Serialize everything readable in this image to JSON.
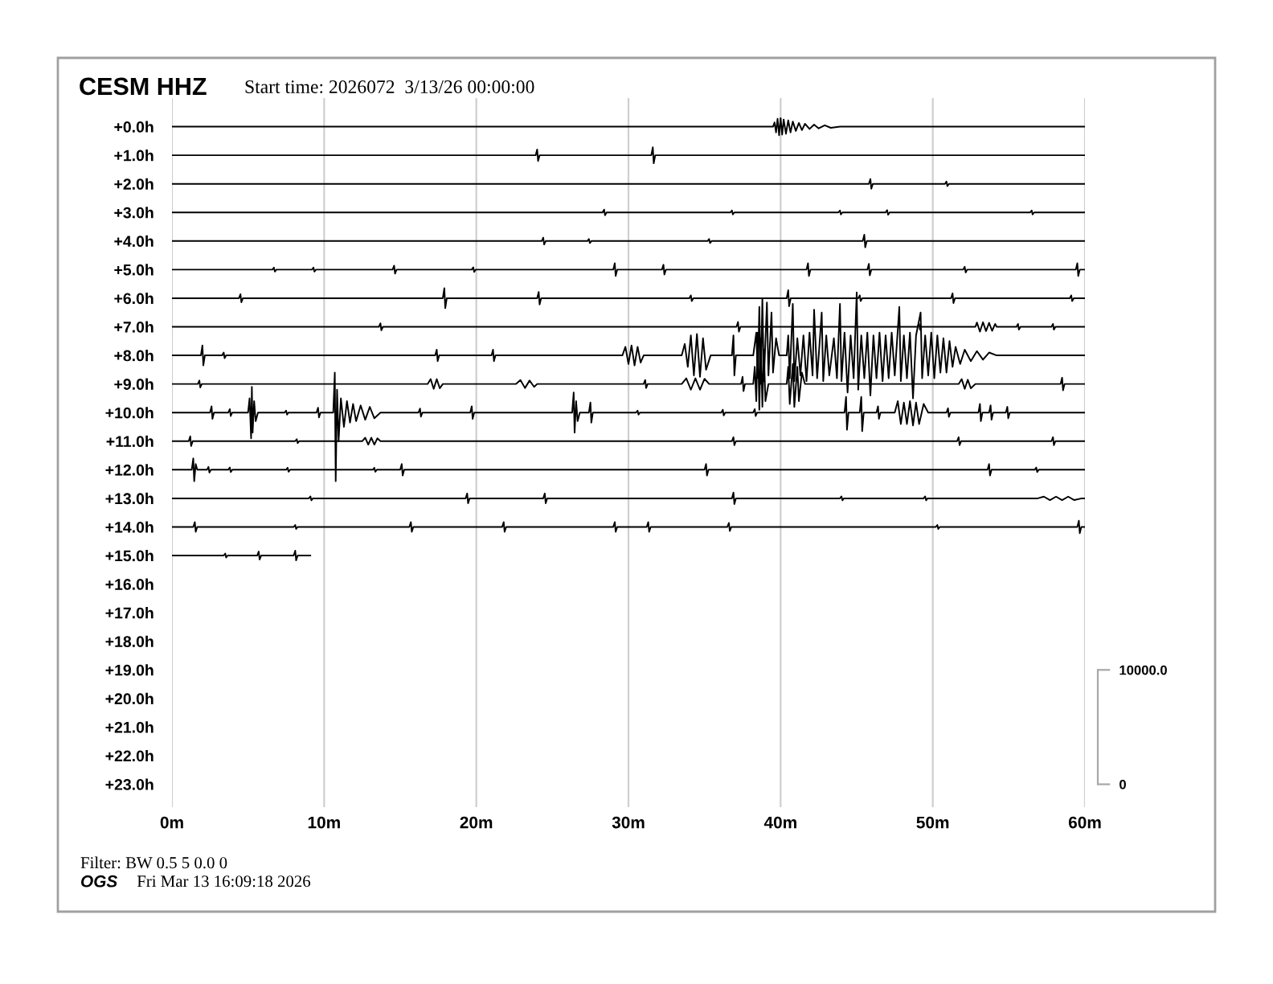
{
  "chart_data": {
    "type": "line",
    "title": "CESM HHZ",
    "subtitle": "Start time: 2026072  3/13/26 00:00:00",
    "annotations": [
      "Filter: BW 0.5 5 0.0 0",
      "OGS",
      "Fri Mar 13 16:09:18 2026"
    ],
    "xlim": [
      0,
      60
    ],
    "xticks": [
      {
        "value": 0,
        "label": "0m"
      },
      {
        "value": 10,
        "label": "10m"
      },
      {
        "value": 20,
        "label": "20m"
      },
      {
        "value": 30,
        "label": "30m"
      },
      {
        "value": 40,
        "label": "40m"
      },
      {
        "value": 50,
        "label": "50m"
      },
      {
        "value": 60,
        "label": "60m"
      }
    ],
    "ylim": [
      23.8,
      -1.0
    ],
    "yticks": [
      {
        "value": 0,
        "label": "+0.0h"
      },
      {
        "value": 1,
        "label": "+1.0h"
      },
      {
        "value": 2,
        "label": "+2.0h"
      },
      {
        "value": 3,
        "label": "+3.0h"
      },
      {
        "value": 4,
        "label": "+4.0h"
      },
      {
        "value": 5,
        "label": "+5.0h"
      },
      {
        "value": 6,
        "label": "+6.0h"
      },
      {
        "value": 7,
        "label": "+7.0h"
      },
      {
        "value": 8,
        "label": "+8.0h"
      },
      {
        "value": 9,
        "label": "+9.0h"
      },
      {
        "value": 10,
        "label": "+10.0h"
      },
      {
        "value": 11,
        "label": "+11.0h"
      },
      {
        "value": 12,
        "label": "+12.0h"
      },
      {
        "value": 13,
        "label": "+13.0h"
      },
      {
        "value": 14,
        "label": "+14.0h"
      },
      {
        "value": 15,
        "label": "+15.0h"
      },
      {
        "value": 16,
        "label": "+16.0h"
      },
      {
        "value": 17,
        "label": "+17.0h"
      },
      {
        "value": 18,
        "label": "+18.0h"
      },
      {
        "value": 19,
        "label": "+19.0h"
      },
      {
        "value": 20,
        "label": "+20.0h"
      },
      {
        "value": 21,
        "label": "+21.0h"
      },
      {
        "value": 22,
        "label": "+22.0h"
      },
      {
        "value": 23,
        "label": "+23.0h"
      }
    ],
    "y2lim": [
      -2000,
      60000
    ],
    "y2ticks": [
      0,
      {
        "value": 10000,
        "label": "10000.0"
      }
    ],
    "grid": "x",
    "series": [
      {
        "color": "#000000",
        "x": [
          0,
          39.5,
          39.6,
          39.7,
          39.8,
          39.9,
          40.0,
          40.1,
          40.2,
          40.35,
          40.5,
          40.65,
          40.8,
          41.0,
          41.2,
          41.4,
          41.6,
          41.9,
          42.2,
          42.5,
          42.9,
          43.3,
          43.9,
          60
        ],
        "values": [
          0,
          0,
          -0.15,
          0.2,
          -0.28,
          0.3,
          -0.3,
          0.28,
          -0.25,
          0.25,
          -0.22,
          0.2,
          -0.18,
          0.15,
          -0.13,
          0.12,
          -0.1,
          0.08,
          -0.07,
          0.06,
          -0.05,
          0.04,
          0,
          0
        ]
      },
      {
        "color": "#000000",
        "x": [
          0,
          23.9,
          24.0,
          24.06,
          24.16,
          31.5,
          31.6,
          31.66,
          31.76,
          60
        ],
        "values": [
          1,
          1,
          0.8,
          1.2,
          1,
          1,
          0.72,
          1.28,
          1,
          1
        ]
      },
      {
        "color": "#000000",
        "x": [
          0,
          45.8,
          45.9,
          45.96,
          46.06,
          50.8,
          50.9,
          50.96,
          51.06,
          60
        ],
        "values": [
          2,
          2,
          1.83,
          2.17,
          2,
          2,
          1.92,
          2.08,
          2,
          2
        ]
      },
      {
        "color": "#000000",
        "x": [
          0,
          28.3,
          28.4,
          28.46,
          28.56,
          36.7,
          36.8,
          36.86,
          36.96,
          43.8,
          43.9,
          43.96,
          44.06,
          46.9,
          47.0,
          47.06,
          47.16,
          56.4,
          56.5,
          56.56,
          56.66,
          60
        ],
        "values": [
          3,
          3,
          2.9,
          3.1,
          3,
          3,
          2.93,
          3.07,
          3,
          3,
          2.93,
          3.07,
          3,
          3,
          2.92,
          3.08,
          3,
          3,
          2.93,
          3.07,
          3,
          3
        ]
      },
      {
        "color": "#000000",
        "x": [
          0,
          24.3,
          24.4,
          24.46,
          24.56,
          27.3,
          27.4,
          27.46,
          27.56,
          35.2,
          35.3,
          35.36,
          35.46,
          45.4,
          45.5,
          45.56,
          45.66,
          60
        ],
        "values": [
          4,
          4,
          3.88,
          4.12,
          4,
          4,
          3.93,
          4.07,
          4,
          4,
          3.93,
          4.07,
          4,
          4,
          3.78,
          4.22,
          4,
          4
        ]
      },
      {
        "color": "#000000",
        "x": [
          0,
          6.6,
          6.7,
          6.76,
          6.86,
          9.2,
          9.3,
          9.36,
          9.46,
          14.5,
          14.6,
          14.66,
          14.76,
          19.7,
          19.8,
          19.86,
          19.96,
          29.0,
          29.1,
          29.16,
          29.26,
          32.2,
          32.3,
          32.36,
          32.46,
          41.7,
          41.8,
          41.86,
          41.96,
          45.7,
          45.8,
          45.86,
          45.96,
          52.0,
          52.1,
          52.16,
          52.26,
          59.4,
          59.5,
          59.56,
          59.66,
          60
        ],
        "values": [
          5,
          5,
          4.93,
          5.07,
          5,
          5,
          4.93,
          5.07,
          5,
          5,
          4.86,
          5.14,
          5,
          5,
          4.92,
          5.08,
          5,
          5,
          4.78,
          5.22,
          5,
          5,
          4.83,
          5.17,
          5,
          5,
          4.78,
          5.22,
          5,
          5,
          4.8,
          5.2,
          5,
          5,
          4.9,
          5.1,
          5,
          5,
          4.78,
          5.22,
          5,
          5
        ]
      },
      {
        "color": "#000000",
        "x": [
          0,
          4.4,
          4.5,
          4.56,
          4.66,
          17.8,
          17.9,
          17.96,
          18.06,
          24.0,
          24.1,
          24.16,
          24.26,
          34.0,
          34.1,
          34.16,
          34.26,
          40.4,
          40.5,
          40.56,
          40.66,
          45.1,
          45.2,
          45.26,
          45.36,
          51.2,
          51.3,
          51.36,
          51.46,
          59.0,
          59.1,
          59.16,
          59.26,
          60
        ],
        "values": [
          6,
          6,
          5.86,
          6.14,
          6,
          6,
          5.65,
          6.35,
          6,
          6,
          5.78,
          6.22,
          6,
          6,
          5.9,
          6.1,
          6,
          6,
          5.72,
          6.28,
          6,
          6,
          5.9,
          6.1,
          6,
          6,
          5.83,
          6.17,
          6,
          6,
          5.9,
          6.1,
          6,
          6
        ]
      },
      {
        "color": "#000000",
        "x": [
          0,
          13.6,
          13.7,
          13.76,
          13.86,
          37.1,
          37.2,
          37.26,
          37.36,
          49.0,
          49.1,
          49.16,
          49.26,
          52.8,
          52.9,
          53.1,
          53.3,
          53.5,
          53.7,
          53.9,
          54.1,
          54.2,
          55.5,
          55.6,
          55.66,
          55.76,
          57.8,
          57.9,
          57.96,
          58.06,
          60
        ],
        "values": [
          7,
          7,
          6.88,
          7.12,
          7,
          7,
          6.83,
          7.17,
          7,
          7,
          6.9,
          7.1,
          7,
          7,
          6.85,
          7.17,
          6.84,
          7.15,
          6.86,
          7.14,
          6.9,
          7,
          7,
          6.9,
          7.1,
          7,
          7,
          6.9,
          7.1,
          7,
          7
        ]
      },
      {
        "color": "#000000",
        "x": [
          0,
          1.9,
          2.0,
          2.06,
          2.16,
          3.3,
          3.4,
          3.46,
          3.56,
          17.3,
          17.4,
          17.46,
          17.56,
          21.0,
          21.1,
          21.16,
          21.26,
          29.6,
          29.8,
          30.0,
          30.2,
          30.4,
          30.6,
          30.8,
          31.0,
          33.5,
          33.7,
          33.9,
          34.1,
          34.3,
          34.5,
          34.7,
          34.9,
          35.1,
          35.4,
          36.8,
          36.9,
          36.96,
          37.06,
          38.2,
          38.4,
          38.5,
          38.6,
          38.7,
          38.8,
          38.9,
          39.1,
          39.2,
          39.4,
          39.5,
          39.7,
          39.9,
          40.4,
          40.5,
          40.6,
          40.8,
          40.9,
          41.1,
          41.3,
          41.5,
          41.7,
          41.9,
          42.1,
          42.2,
          42.4,
          42.7,
          42.8,
          43.0,
          43.2,
          43.5,
          43.7,
          43.9,
          44.0,
          44.2,
          44.4,
          44.6,
          44.8,
          45.0,
          45.1,
          45.3,
          45.5,
          45.7,
          45.9,
          46.1,
          46.3,
          46.5,
          46.7,
          46.9,
          47.1,
          47.3,
          47.5,
          47.8,
          47.9,
          48.1,
          48.3,
          48.5,
          48.7,
          48.9,
          49.2,
          49.3,
          49.5,
          49.7,
          49.9,
          50.1,
          50.3,
          50.5,
          50.7,
          50.9,
          51.1,
          51.3,
          51.5,
          51.8,
          52.1,
          52.5,
          52.9,
          53.3,
          53.7,
          54.2,
          60
        ],
        "values": [
          8,
          8,
          7.65,
          8.35,
          8,
          8,
          7.9,
          8.1,
          8,
          8,
          7.8,
          8.2,
          8,
          8,
          7.8,
          8.2,
          8,
          8,
          7.7,
          8.3,
          7.65,
          8.35,
          7.7,
          8.25,
          8,
          8,
          7.6,
          8.4,
          7.3,
          8.7,
          7.25,
          8.75,
          7.4,
          8.5,
          8,
          8,
          7.3,
          8.7,
          8,
          8,
          7.2,
          8.8,
          6.3,
          9.0,
          6.0,
          8.9,
          6.15,
          8.7,
          6.5,
          8.6,
          7.4,
          8,
          8,
          7.3,
          8.8,
          6.2,
          8.9,
          7.4,
          8.7,
          7.3,
          8.9,
          7.2,
          8.7,
          6.4,
          8.8,
          6.5,
          8.9,
          7.3,
          8.7,
          7.4,
          8.8,
          6.2,
          8.9,
          7.2,
          9.3,
          7.3,
          8.8,
          5.8,
          9.2,
          7.3,
          8.8,
          7.2,
          9.4,
          7.3,
          8.8,
          7.2,
          8.9,
          7.3,
          8.8,
          7.2,
          8.7,
          6.3,
          8.9,
          7.3,
          8.8,
          7.2,
          9.5,
          7.3,
          6.5,
          8.8,
          7.3,
          8.7,
          7.2,
          8.8,
          7.3,
          8.6,
          7.4,
          8.6,
          7.5,
          8.4,
          7.7,
          8.3,
          7.8,
          8.2,
          7.85,
          8.15,
          7.9,
          8,
          8
        ]
      },
      {
        "color": "#000000",
        "x": [
          0,
          1.7,
          1.8,
          1.86,
          1.96,
          16.8,
          17.0,
          17.2,
          17.4,
          17.6,
          17.8,
          22.6,
          22.9,
          23.2,
          23.5,
          23.8,
          24.0,
          31.0,
          31.1,
          31.16,
          31.26,
          33.5,
          33.8,
          34.1,
          34.4,
          34.7,
          35.0,
          35.3,
          37.4,
          37.5,
          37.56,
          37.66,
          38.2,
          38.3,
          38.4,
          38.5,
          38.6,
          38.7,
          38.8,
          38.9,
          39.0,
          39.2,
          40.4,
          40.5,
          40.6,
          40.8,
          40.9,
          41.1,
          41.2,
          41.4,
          41.6,
          51.7,
          51.9,
          52.1,
          52.3,
          52.5,
          52.8,
          58.4,
          58.5,
          58.56,
          58.66,
          60
        ],
        "values": [
          9,
          9,
          8.88,
          9.12,
          9,
          9,
          8.83,
          9.17,
          8.83,
          9.15,
          9,
          9,
          8.86,
          9.14,
          8.88,
          9.1,
          9,
          9,
          8.86,
          9.14,
          9,
          9,
          8.8,
          9.2,
          8.8,
          9.2,
          8.82,
          9,
          9,
          8.75,
          9.25,
          9,
          9,
          8.4,
          9.6,
          7.2,
          9.9,
          7.4,
          9.8,
          7.8,
          9.6,
          9,
          9,
          8.4,
          9.7,
          8.3,
          9.8,
          8.4,
          9.6,
          8.6,
          9,
          9,
          8.83,
          9.17,
          8.85,
          9.15,
          9,
          9,
          8.78,
          9.22,
          9,
          9
        ]
      },
      {
        "color": "#000000",
        "x": [
          0,
          2.5,
          2.6,
          2.66,
          2.76,
          3.7,
          3.8,
          3.86,
          3.96,
          5.0,
          5.1,
          5.2,
          5.25,
          5.3,
          5.4,
          5.5,
          5.65,
          7.4,
          7.5,
          7.56,
          7.66,
          9.5,
          9.6,
          9.66,
          9.76,
          10.6,
          10.7,
          10.76,
          10.85,
          10.95,
          11.1,
          11.3,
          11.5,
          11.7,
          11.9,
          12.1,
          12.4,
          12.7,
          13.0,
          13.3,
          13.7,
          16.2,
          16.3,
          16.36,
          16.46,
          19.6,
          19.7,
          19.76,
          19.86,
          26.3,
          26.4,
          26.46,
          26.56,
          26.66,
          26.8,
          27.4,
          27.5,
          27.56,
          27.66,
          30.5,
          30.6,
          30.66,
          30.76,
          36.1,
          36.2,
          36.26,
          36.36,
          38.2,
          38.3,
          38.36,
          38.46,
          44.2,
          44.3,
          44.36,
          44.46,
          45.2,
          45.3,
          45.36,
          45.46,
          46.3,
          46.4,
          46.46,
          46.56,
          47.5,
          47.7,
          47.9,
          48.1,
          48.3,
          48.5,
          48.7,
          48.9,
          49.1,
          49.4,
          49.7,
          50.9,
          51.0,
          51.06,
          51.16,
          53.0,
          53.1,
          53.16,
          53.26,
          53.7,
          53.8,
          53.86,
          53.96,
          54.8,
          54.9,
          54.96,
          55.06,
          60
        ],
        "values": [
          10,
          10,
          9.78,
          10.22,
          10,
          10,
          9.88,
          10.12,
          10,
          10,
          9.5,
          10.9,
          9.1,
          10.7,
          9.6,
          10.3,
          10,
          10,
          9.93,
          10.07,
          10,
          10,
          9.83,
          10.17,
          10,
          10,
          8.6,
          12.4,
          9.2,
          11.0,
          9.5,
          10.5,
          9.6,
          10.35,
          9.7,
          10.3,
          9.75,
          10.25,
          9.8,
          10.2,
          10,
          10,
          9.86,
          10.14,
          10,
          10,
          9.78,
          10.22,
          10,
          10,
          9.3,
          10.7,
          9.6,
          10.3,
          10,
          10,
          9.65,
          10.35,
          10,
          10,
          9.93,
          10.07,
          10,
          10,
          9.9,
          10.1,
          10,
          10,
          9.88,
          10.12,
          10,
          10,
          9.45,
          10.6,
          10,
          10,
          9.45,
          10.65,
          10,
          10,
          9.78,
          10.22,
          10,
          10,
          9.6,
          10.4,
          9.65,
          10.4,
          9.6,
          10.45,
          9.65,
          10.4,
          9.7,
          10,
          10,
          9.85,
          10.15,
          10,
          10,
          9.7,
          10.3,
          10,
          10,
          9.75,
          10.25,
          10,
          10,
          9.8,
          10.2,
          10,
          10
        ]
      },
      {
        "color": "#000000",
        "x": [
          0,
          1.1,
          1.2,
          1.26,
          1.36,
          8.1,
          8.2,
          8.26,
          8.36,
          12.5,
          12.7,
          12.9,
          13.1,
          13.3,
          13.5,
          13.7,
          36.8,
          36.9,
          36.96,
          37.06,
          51.6,
          51.7,
          51.76,
          51.86,
          57.8,
          57.9,
          57.96,
          58.06,
          60
        ],
        "values": [
          11,
          11,
          10.83,
          11.17,
          11,
          11,
          10.93,
          11.07,
          11,
          11,
          10.88,
          11.12,
          10.88,
          11.12,
          10.9,
          11,
          11,
          10.86,
          11.14,
          11,
          11,
          10.86,
          11.14,
          11,
          11,
          10.86,
          11.14,
          11,
          11
        ]
      },
      {
        "color": "#000000",
        "x": [
          0,
          1.3,
          1.4,
          1.46,
          1.56,
          1.66,
          2.3,
          2.4,
          2.46,
          2.56,
          3.7,
          3.8,
          3.86,
          3.96,
          7.5,
          7.6,
          7.66,
          7.76,
          13.2,
          13.3,
          13.36,
          13.46,
          15.0,
          15.1,
          15.16,
          15.26,
          35.0,
          35.1,
          35.16,
          35.26,
          53.6,
          53.7,
          53.76,
          53.86,
          56.7,
          56.8,
          56.86,
          56.96,
          60
        ],
        "values": [
          12,
          12,
          11.6,
          12.4,
          11.8,
          12,
          12,
          11.9,
          12.1,
          12,
          12,
          11.92,
          12.08,
          12,
          12,
          11.93,
          12.07,
          12,
          12,
          11.93,
          12.07,
          12,
          12,
          11.8,
          12.2,
          12,
          12,
          11.8,
          12.2,
          12,
          12,
          11.8,
          12.2,
          12,
          12,
          11.92,
          12.08,
          12,
          12
        ]
      },
      {
        "color": "#000000",
        "x": [
          0,
          9.0,
          9.1,
          9.16,
          9.26,
          19.3,
          19.4,
          19.46,
          19.56,
          24.4,
          24.5,
          24.56,
          24.66,
          36.8,
          36.9,
          36.96,
          37.06,
          43.9,
          44.0,
          44.06,
          44.16,
          49.4,
          49.5,
          49.56,
          49.66,
          56.9,
          57.3,
          57.7,
          58.1,
          58.5,
          58.9,
          59.3,
          59.8,
          60
        ],
        "values": [
          13,
          13,
          12.93,
          13.07,
          13,
          13,
          12.83,
          13.17,
          13,
          13,
          12.83,
          13.17,
          13,
          13,
          12.8,
          13.2,
          13,
          13,
          12.93,
          13.07,
          13,
          13,
          12.93,
          13.07,
          13,
          13,
          12.94,
          13.06,
          12.94,
          13.06,
          12.94,
          13.06,
          13,
          13
        ]
      },
      {
        "color": "#000000",
        "x": [
          0,
          1.4,
          1.5,
          1.56,
          1.66,
          8.0,
          8.1,
          8.16,
          8.26,
          15.6,
          15.7,
          15.76,
          15.86,
          21.7,
          21.8,
          21.86,
          21.96,
          29.0,
          29.1,
          29.16,
          29.26,
          31.2,
          31.3,
          31.36,
          31.46,
          36.5,
          36.6,
          36.66,
          36.76,
          50.2,
          50.3,
          50.36,
          50.46,
          59.5,
          59.6,
          59.66,
          59.76,
          60
        ],
        "values": [
          14,
          14,
          13.83,
          14.17,
          14,
          14,
          13.93,
          14.07,
          14,
          14,
          13.83,
          14.17,
          14,
          14,
          13.83,
          14.17,
          14,
          14,
          13.83,
          14.17,
          14,
          14,
          13.83,
          14.17,
          14,
          14,
          13.86,
          14.14,
          14,
          14,
          13.93,
          14.07,
          14,
          14,
          13.78,
          14.22,
          14,
          14
        ]
      },
      {
        "color": "#000000",
        "x": [
          0,
          3.4,
          3.5,
          3.56,
          3.66,
          5.6,
          5.7,
          5.76,
          5.86,
          8.0,
          8.1,
          8.16,
          8.26,
          9.1
        ],
        "values": [
          15,
          15,
          14.93,
          15.07,
          15,
          15,
          14.86,
          15.14,
          15,
          15,
          14.83,
          15.17,
          15,
          15
        ]
      }
    ]
  }
}
